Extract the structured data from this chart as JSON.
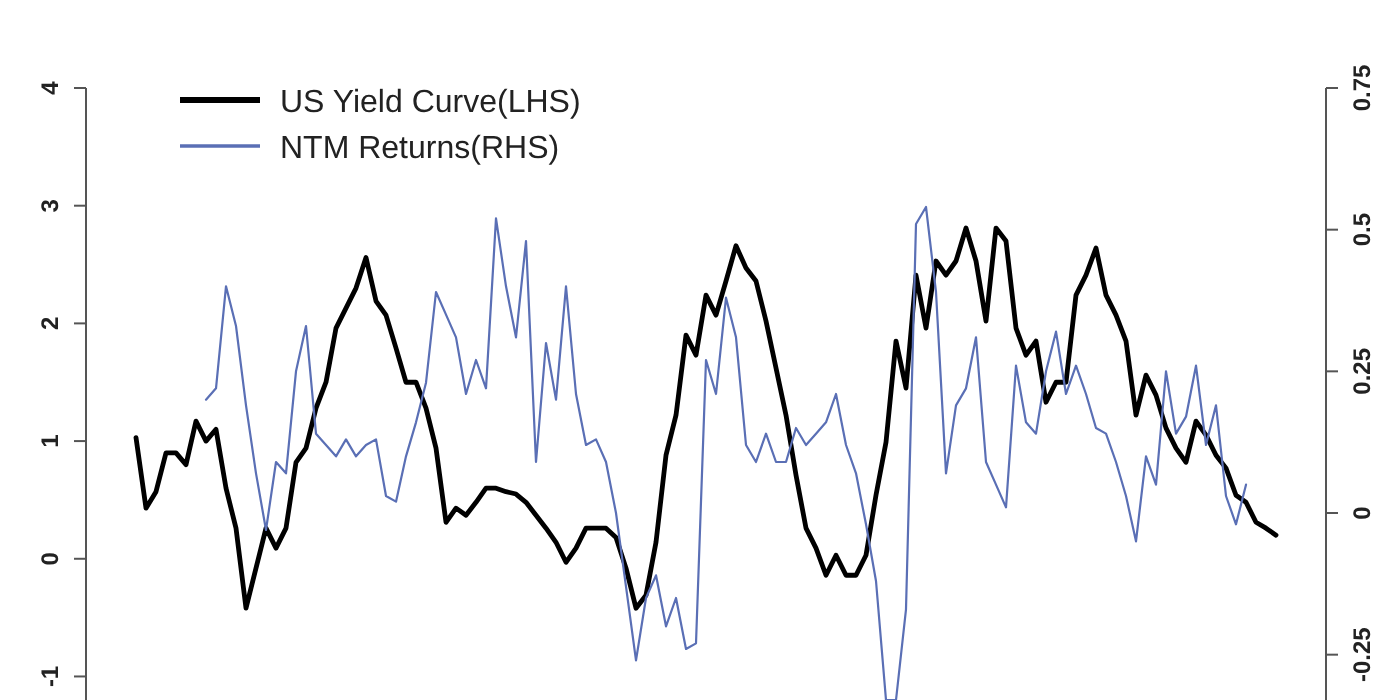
{
  "chart_data": {
    "type": "line",
    "categories": [
      null,
      null,
      null,
      null,
      null,
      null,
      null,
      null,
      null,
      null,
      null,
      null,
      null,
      null,
      null,
      null,
      null,
      null,
      null,
      null,
      null,
      null,
      null,
      null,
      null,
      null,
      null,
      null,
      null,
      null,
      null,
      null,
      null,
      null,
      null,
      null,
      null,
      null,
      null,
      null,
      null,
      null,
      null,
      null,
      null,
      null,
      null,
      null,
      null,
      null,
      null,
      null,
      null,
      null,
      null,
      null,
      null,
      null,
      null,
      null,
      null,
      null,
      null,
      null,
      null,
      null,
      null,
      null,
      null,
      null,
      null,
      null,
      null,
      null,
      null,
      null,
      null,
      null,
      null,
      null,
      null,
      null,
      null,
      null,
      null,
      null,
      null,
      null,
      null,
      null,
      null,
      null,
      null,
      null,
      null,
      null,
      null,
      null,
      null,
      null,
      null,
      null,
      null,
      null,
      null,
      null,
      null,
      null,
      null,
      null,
      null,
      null,
      null,
      null,
      null
    ],
    "ylim": [
      -1.2,
      4
    ],
    "yticks": [
      -1,
      0,
      1,
      2,
      3,
      4
    ],
    "y2lim": [
      -0.33,
      0.75
    ],
    "y2ticks": [
      -0.25,
      0,
      0.25,
      0.5,
      0.75
    ],
    "tick_labels": "y",
    "legend": "top left",
    "grid": false,
    "line_style": "solid",
    "marker": "none",
    "series": [
      {
        "name": "US Yield Curve(LHS)",
        "color": "#000000",
        "axis": "y",
        "values": [
          1.03,
          0.43,
          0.57,
          0.9,
          0.9,
          0.8,
          1.17,
          1.0,
          1.1,
          0.6,
          0.26,
          -0.42,
          -0.08,
          0.26,
          0.09,
          0.26,
          0.82,
          0.94,
          1.28,
          1.5,
          1.96,
          2.13,
          2.3,
          2.56,
          2.19,
          2.07,
          1.79,
          1.5,
          1.5,
          1.28,
          0.94,
          0.31,
          0.43,
          0.37,
          0.48,
          0.6,
          0.6,
          0.57,
          0.55,
          0.48,
          0.37,
          0.26,
          0.14,
          -0.03,
          0.09,
          0.26,
          0.26,
          0.26,
          0.18,
          -0.08,
          -0.42,
          -0.31,
          0.14,
          0.88,
          1.22,
          1.9,
          1.73,
          2.24,
          2.07,
          2.36,
          2.66,
          2.47,
          2.36,
          2.02,
          1.62,
          1.22,
          0.71,
          0.26,
          0.09,
          -0.14,
          0.03,
          -0.14,
          -0.14,
          0.03,
          0.54,
          0.99,
          1.85,
          1.45,
          2.41,
          1.96,
          2.53,
          2.41,
          2.53,
          2.81,
          2.53,
          2.02,
          2.81,
          2.7,
          1.96,
          1.73,
          1.85,
          1.33,
          1.5,
          1.5,
          2.24,
          2.41,
          2.64,
          2.24,
          2.07,
          1.85,
          1.22,
          1.56,
          1.39,
          1.11,
          0.94,
          0.82,
          1.17,
          1.05,
          0.88,
          0.77,
          0.54,
          0.48,
          0.31,
          0.26,
          0.2
        ]
      },
      {
        "name": "NTM Returns(RHS)",
        "color": "#5a6fb5",
        "axis": "y2",
        "values": [
          null,
          null,
          null,
          null,
          null,
          null,
          null,
          0.2,
          0.22,
          0.4,
          0.33,
          0.19,
          0.07,
          -0.03,
          0.09,
          0.07,
          0.25,
          0.33,
          0.14,
          0.12,
          0.1,
          0.13,
          0.1,
          0.12,
          0.13,
          0.03,
          0.02,
          0.1,
          0.16,
          0.23,
          0.39,
          0.35,
          0.31,
          0.21,
          0.27,
          0.22,
          0.52,
          0.4,
          0.31,
          0.48,
          0.09,
          0.3,
          0.2,
          0.4,
          0.21,
          0.12,
          0.13,
          0.09,
          0,
          -0.13,
          -0.26,
          -0.15,
          -0.11,
          -0.2,
          -0.15,
          -0.24,
          -0.23,
          0.27,
          0.21,
          0.38,
          0.31,
          0.12,
          0.09,
          0.14,
          0.09,
          0.09,
          0.15,
          0.12,
          0.14,
          0.16,
          0.21,
          0.12,
          0.07,
          -0.02,
          -0.12,
          -0.33,
          -0.33,
          -0.17,
          0.51,
          0.54,
          0.39,
          0.07,
          0.19,
          0.22,
          0.31,
          0.09,
          0.05,
          0.01,
          0.26,
          0.16,
          0.14,
          0.25,
          0.32,
          0.21,
          0.26,
          0.21,
          0.15,
          0.14,
          0.09,
          0.03,
          -0.05,
          0.1,
          0.05,
          0.25,
          0.14,
          0.17,
          0.26,
          0.12,
          0.19,
          0.03,
          -0.02,
          0.05,
          null,
          null,
          null
        ]
      }
    ]
  }
}
